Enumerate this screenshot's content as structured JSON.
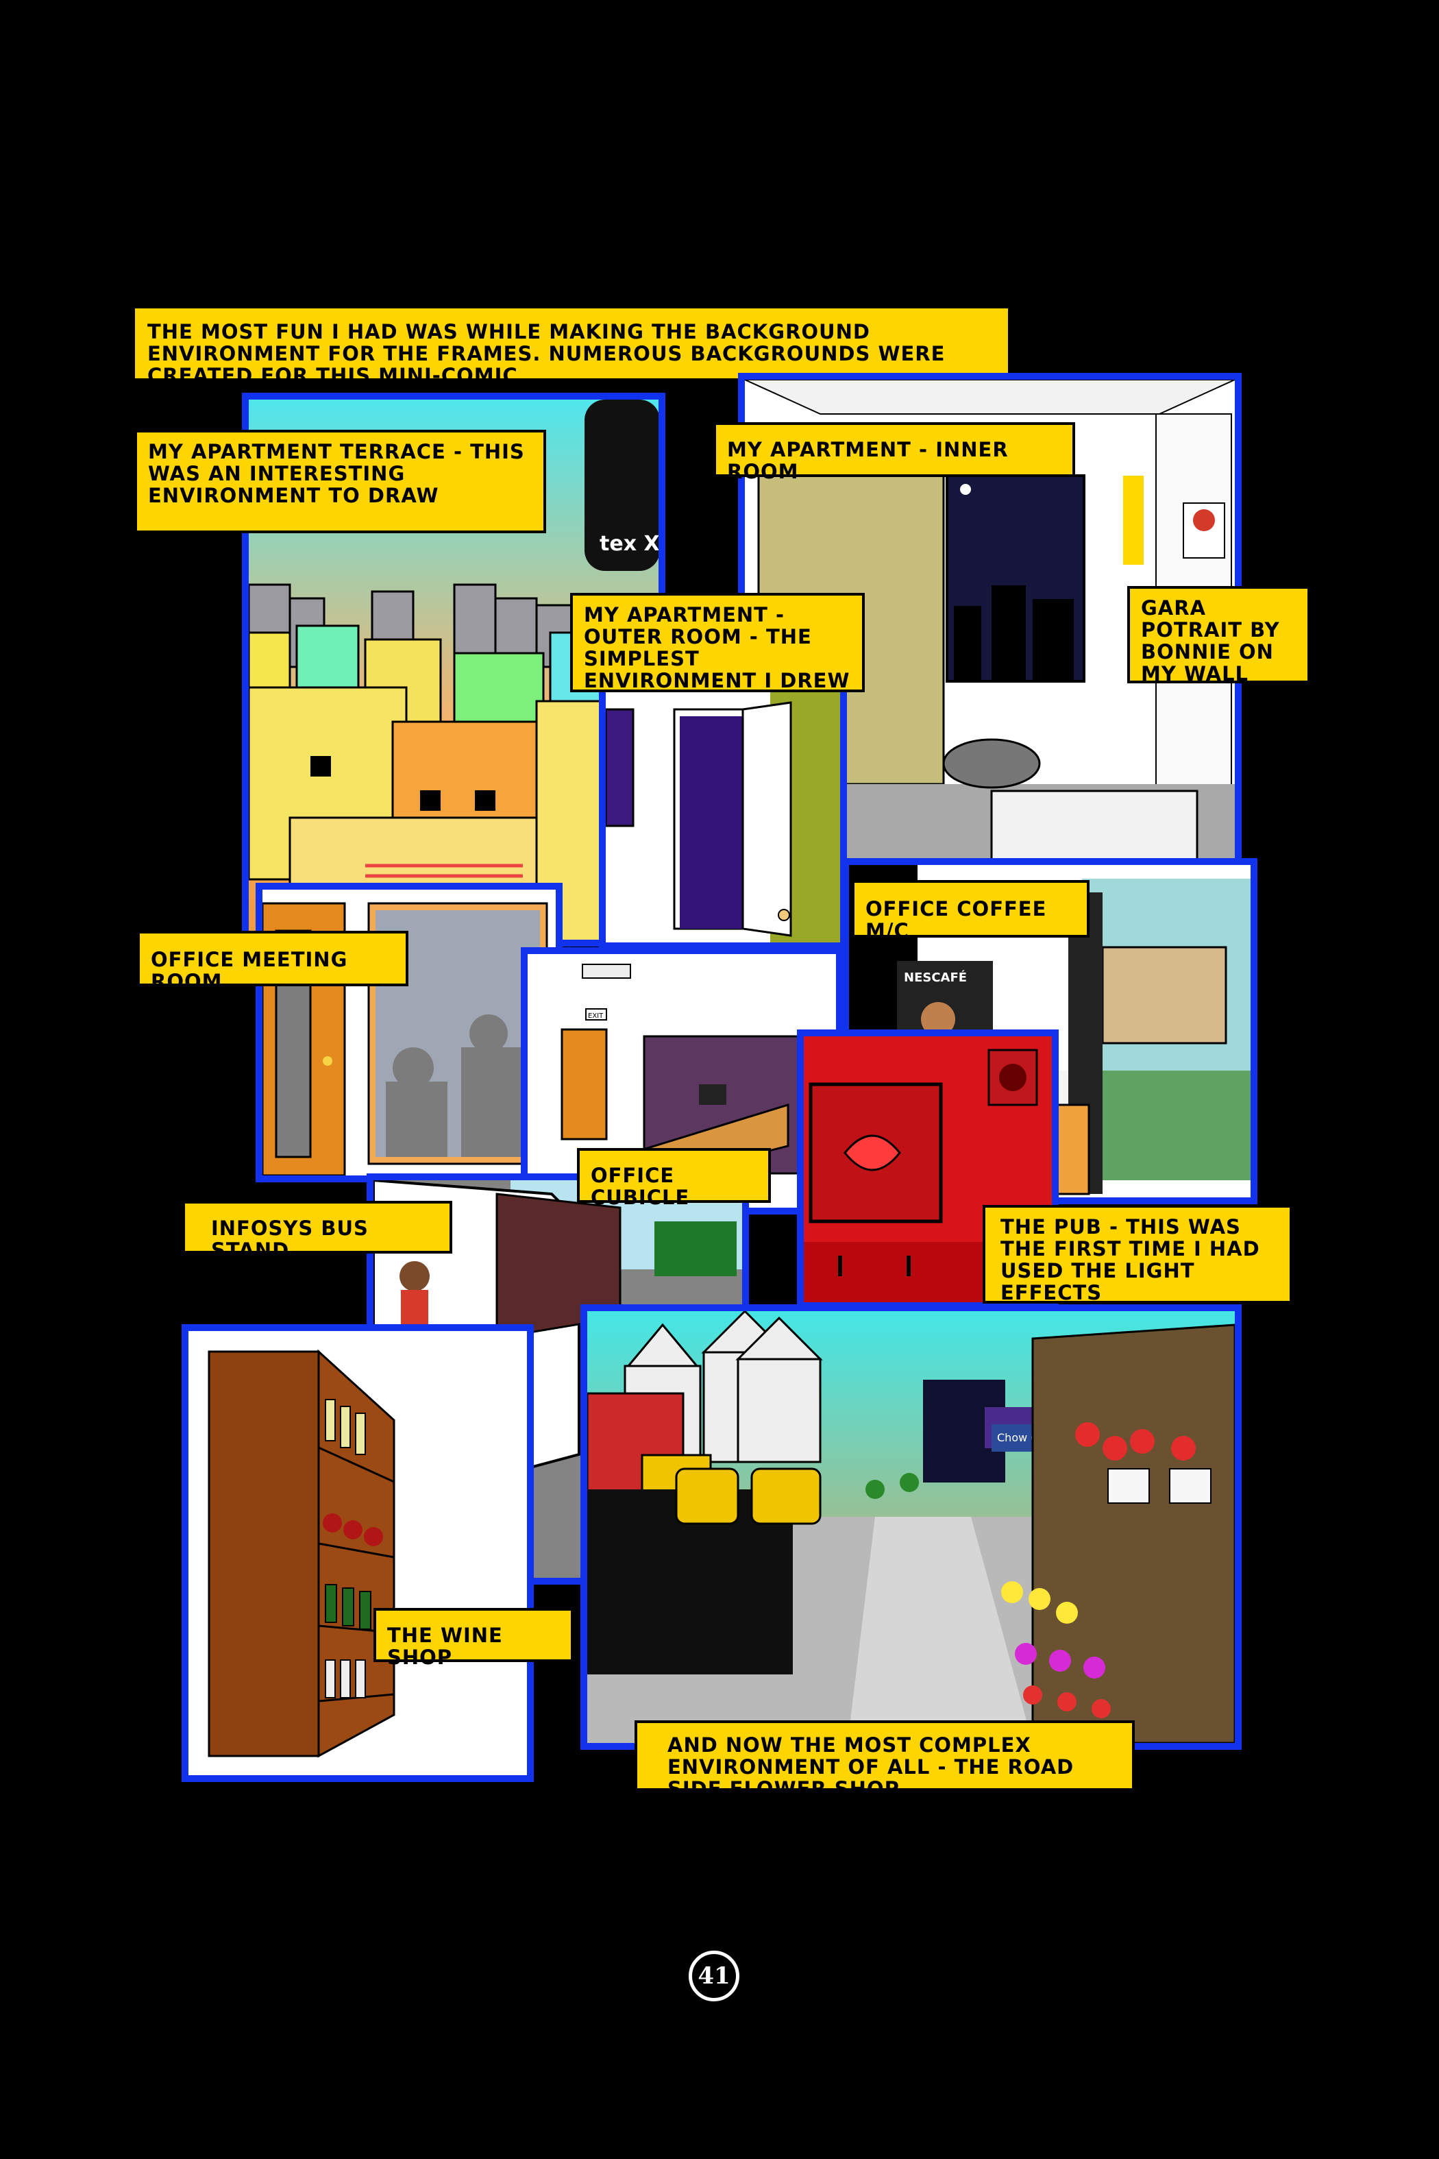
{
  "intro": "THE MOST FUN I HAD WAS WHILE MAKING THE BACKGROUND ENVIRONMENT FOR THE FRAMES. NUMEROUS BACKGROUNDS WERE CREATED FOR THIS MINI-COMIC.",
  "captions": {
    "terrace": "MY APARTMENT TERRACE - THIS WAS AN INTERESTING ENVIRONMENT TO DRAW",
    "inner_room": "MY APARTMENT - INNER ROOM",
    "outer_room": "MY APARTMENT - OUTER ROOM - THE SIMPLEST ENVIRONMENT I DREW",
    "gara": "GARA POTRAIT BY BONNIE ON MY WALL",
    "coffee": "OFFICE COFFEE M/C",
    "meeting": "OFFICE MEETING ROOM",
    "cubicle": "OFFICE CUBICLE",
    "bus_stand": "INFOSYS BUS STAND",
    "pub": "THE PUB - THIS WAS THE FIRST TIME I HAD USED THE LIGHT EFFECTS",
    "wine": "THE WINE SHOP",
    "flower": "AND NOW THE MOST COMPLEX ENVIRONMENT OF ALL - THE ROAD SIDE FLOWER SHOP"
  },
  "signs": {
    "nescafe": "NESCAFÉ",
    "exit": "EXIT",
    "tank": "tex X",
    "chow": "Chow Chow"
  },
  "page_number": "41",
  "colors": {
    "panel_border": "#1133ee",
    "caption_bg": "#ffd500",
    "page_bg": "#000000"
  }
}
